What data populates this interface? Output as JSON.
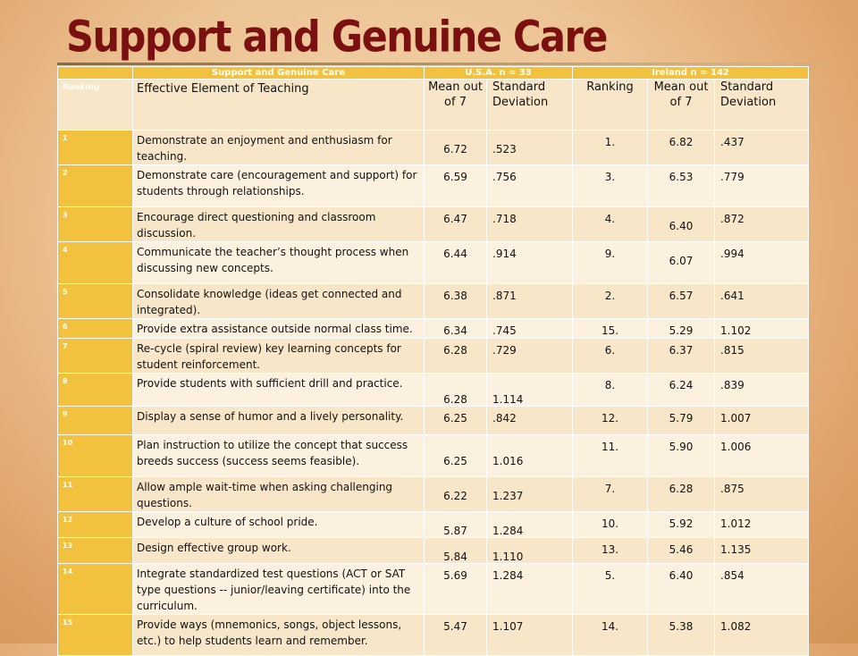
{
  "slide": {
    "title": "Support and Genuine Care"
  },
  "table": {
    "header_top": {
      "group_label": "Support and Genuine Care",
      "usa_label": "U.S.A. n = 33",
      "ireland_label": "Ireland n = 142"
    },
    "header_sub": {
      "ranking": "Ranking",
      "element": "Effective Element of Teaching",
      "usa_mean": "Mean out\n of 7",
      "usa_sd": "Standard\nDeviation",
      "ire_ranking": "Ranking",
      "ire_mean": "Mean out\n of 7",
      "ire_sd": "Standard\nDeviation"
    },
    "rows": [
      {
        "rank": "1",
        "element": "Demonstrate an enjoyment and enthusiasm for teaching.",
        "usa_mean": "6.72",
        "usa_sd": ".523",
        "ire_rank": "1.",
        "ire_mean": "6.82",
        "ire_sd": ".437"
      },
      {
        "rank": "2",
        "element": "Demonstrate care (encouragement and support) for students through relationships.",
        "usa_mean": "6.59",
        "usa_sd": ".756",
        "ire_rank": "3.",
        "ire_mean": "6.53",
        "ire_sd": ".779"
      },
      {
        "rank": "3",
        "element": "Encourage direct questioning and classroom discussion.",
        "usa_mean": "6.47",
        "usa_sd": ".718",
        "ire_rank": "4.",
        "ire_mean": "6.40",
        "ire_sd": ".872"
      },
      {
        "rank": "4",
        "element": "Communicate the teacher’s thought process when discussing new concepts.",
        "usa_mean": "6.44",
        "usa_sd": ".914",
        "ire_rank": "9.",
        "ire_mean": "6.07",
        "ire_sd": ".994"
      },
      {
        "rank": "5",
        "element": "Consolidate knowledge (ideas get connected and integrated).",
        "usa_mean": "6.38",
        "usa_sd": ".871",
        "ire_rank": "2.",
        "ire_mean": "6.57",
        "ire_sd": ".641"
      },
      {
        "rank": "6",
        "element": "Provide extra assistance outside normal class time.",
        "usa_mean": "6.34",
        "usa_sd": ".745",
        "ire_rank": "15.",
        "ire_mean": "5.29",
        "ire_sd": "1.102"
      },
      {
        "rank": "7",
        "element": "Re-cycle (spiral review) key learning concepts for student reinforcement.",
        "usa_mean": "6.28",
        "usa_sd": ".729",
        "ire_rank": "6.",
        "ire_mean": "6.37",
        "ire_sd": ".815"
      },
      {
        "rank": "8",
        "element": " Provide students with sufficient drill and practice.",
        "usa_mean": "6.28",
        "usa_sd": "1.114",
        "ire_rank": "8.",
        "ire_mean": "6.24",
        "ire_sd": ".839"
      },
      {
        "rank": "9",
        "element": " Display a sense of humor and a lively personality.",
        "usa_mean": "6.25",
        "usa_sd": ".842",
        "ire_rank": "12.",
        "ire_mean": "5.79",
        "ire_sd": "1.007"
      },
      {
        "rank": "10",
        "element": "Plan instruction to utilize the concept that success breeds success (success seems feasible).",
        "usa_mean": "6.25",
        "usa_sd": "1.016",
        "ire_rank": "11.",
        "ire_mean": "5.90",
        "ire_sd": "1.006"
      },
      {
        "rank": "11",
        "element": "Allow ample wait-time when asking challenging questions.",
        "usa_mean": "6.22",
        "usa_sd": "1.237",
        "ire_rank": "7.",
        "ire_mean": "6.28",
        "ire_sd": ".875"
      },
      {
        "rank": "12",
        "element": "Develop a culture of school pride.",
        "usa_mean": "5.87",
        "usa_sd": "1.284",
        "ire_rank": "10.",
        "ire_mean": "5.92",
        "ire_sd": "1.012"
      },
      {
        "rank": "13",
        "element": "Design effective  group work.",
        "usa_mean": "5.84",
        "usa_sd": "1.110",
        "ire_rank": "13.",
        "ire_mean": "5.46",
        "ire_sd": "1.135"
      },
      {
        "rank": "14",
        "element": "Integrate standardized test questions (ACT or SAT type questions -- junior/leaving certificate) into the curriculum.",
        "usa_mean": "5.69",
        "usa_sd": "1.284",
        "ire_rank": "5.",
        "ire_mean": "6.40",
        "ire_sd": ".854"
      },
      {
        "rank": "15",
        "element": "Provide ways (mnemonics, songs, object lessons, etc.) to help students learn and remember.",
        "usa_mean": "5.47",
        "usa_sd": "1.107",
        "ire_rank": "14.",
        "ire_mean": "5.38",
        "ire_sd": "1.082"
      }
    ]
  }
}
